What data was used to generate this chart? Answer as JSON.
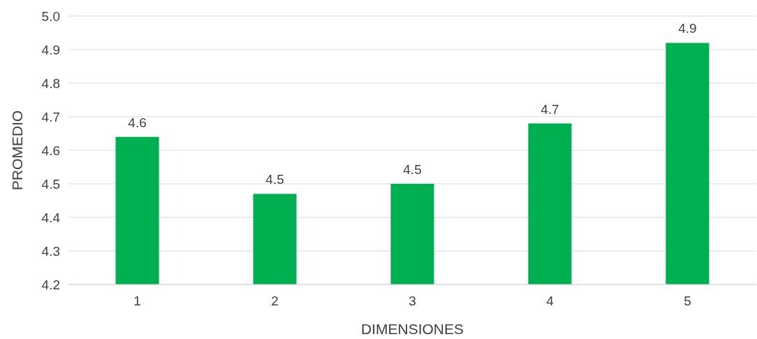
{
  "chart_data": {
    "type": "bar",
    "xlabel": "DIMENSIONES",
    "ylabel": "PROMEDIO",
    "categories": [
      "1",
      "2",
      "3",
      "4",
      "5"
    ],
    "values": [
      4.64,
      4.47,
      4.5,
      4.68,
      4.92
    ],
    "value_labels": [
      "4.6",
      "4.5",
      "4.5",
      "4.7",
      "4.9"
    ],
    "color": "#00b050",
    "ylim": [
      4.2,
      5.0
    ],
    "yticks": [
      4.2,
      4.3,
      4.4,
      4.5,
      4.6,
      4.7,
      4.8,
      4.9,
      {
        "value": 5.0,
        "label": "5.0"
      }
    ],
    "grid": "y"
  }
}
